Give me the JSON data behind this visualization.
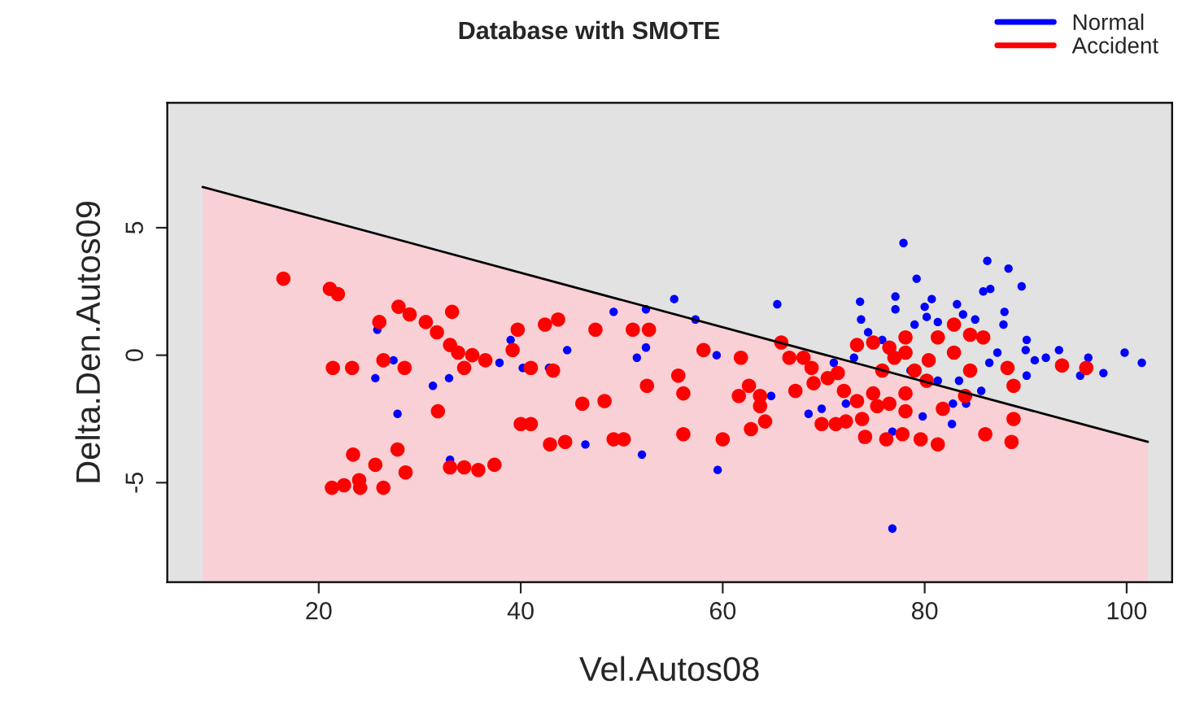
{
  "chart_data": {
    "type": "scatter",
    "title": "Database with SMOTE",
    "xlabel": "Vel.Autos08",
    "ylabel": "Delta.Den.Autos09",
    "xlim": [
      5,
      104.5
    ],
    "ylim": [
      -8.9,
      9.9
    ],
    "xticks": [
      20,
      40,
      60,
      80,
      100
    ],
    "yticks": [
      -5,
      0,
      5
    ],
    "grid": false,
    "legend": "top right",
    "series": [
      {
        "name": "Normal",
        "color": "#0000ff",
        "type": "scatter",
        "marker": "circle",
        "x": [
          25.6,
          27.4,
          25.8,
          27.8,
          31.3,
          32.9,
          33.0,
          37.9,
          39.0,
          40.2,
          42.8,
          44.6,
          46.4,
          49.2,
          52.4,
          55.2,
          57.3,
          52.4,
          51.5,
          59.4,
          52.0,
          59.5,
          65.4,
          64.8,
          68.5,
          69.8,
          72.2,
          73.6,
          73.7,
          74.4,
          71.0,
          73.9,
          76.8,
          76.8,
          77.1,
          77.1,
          77.9,
          79.2,
          80.0,
          80.7,
          79.0,
          80.2,
          81.3,
          83.2,
          83.8,
          85.0,
          85.8,
          86.5,
          86.2,
          88.3,
          89.6,
          87.9,
          87.8,
          90.1,
          90.0,
          87.2,
          86.4,
          90.9,
          90.1,
          92.0,
          93.3,
          96.2,
          95.4,
          97.7,
          99.8,
          101.5,
          85.6,
          84.1,
          82.8,
          82.7,
          79.8,
          81.3,
          83.4,
          78.6,
          75.8,
          73.0
        ],
        "values": [
          -0.9,
          -0.2,
          1.0,
          -2.3,
          -1.2,
          -0.9,
          -4.1,
          -0.3,
          0.6,
          -0.5,
          -0.5,
          0.2,
          -3.5,
          1.7,
          1.8,
          2.2,
          1.4,
          0.3,
          -0.1,
          0.0,
          -3.9,
          -4.5,
          2.0,
          -1.6,
          -2.3,
          -2.1,
          -1.9,
          2.1,
          1.4,
          0.9,
          -0.3,
          -3.3,
          -3.0,
          -6.8,
          1.8,
          2.3,
          4.4,
          3.0,
          1.9,
          2.2,
          1.2,
          1.5,
          1.3,
          2.0,
          1.6,
          1.4,
          2.5,
          2.6,
          3.7,
          3.4,
          2.7,
          1.7,
          1.2,
          0.6,
          0.2,
          0.1,
          -0.3,
          -0.2,
          -0.8,
          -0.1,
          0.2,
          -0.1,
          -0.8,
          -0.7,
          0.1,
          -0.3,
          -1.4,
          -1.9,
          -1.9,
          -2.7,
          -2.4,
          -1.0,
          -1.0,
          -0.6,
          0.6,
          -0.1
        ]
      },
      {
        "name": "Accident",
        "color": "#ff0000",
        "type": "scatter",
        "marker": "circle",
        "x": [
          16.5,
          21.1,
          21.9,
          21.4,
          23.3,
          26.0,
          26.4,
          28.5,
          27.9,
          29.0,
          30.6,
          31.7,
          33.2,
          33.0,
          33.8,
          35.2,
          36.5,
          34.4,
          31.8,
          39.7,
          39.2,
          41.0,
          42.4,
          43.7,
          43.2,
          40.0,
          41.0,
          42.9,
          44.4,
          46.1,
          23.4,
          21.3,
          22.5,
          24.0,
          24.1,
          26.4,
          25.6,
          27.8,
          28.6,
          33.0,
          34.4,
          35.8,
          37.4,
          47.4,
          48.3,
          51.1,
          52.7,
          52.5,
          55.6,
          56.1,
          49.2,
          50.2,
          56.1,
          60.0,
          58.1,
          61.8,
          62.6,
          61.6,
          63.7,
          63.7,
          62.8,
          64.2,
          65.8,
          66.6,
          68.0,
          68.8,
          67.2,
          69.0,
          70.4,
          71.4,
          72.0,
          69.8,
          71.2,
          72.2,
          73.3,
          73.8,
          74.1,
          76.2,
          77.8,
          79.6,
          81.3,
          74.9,
          75.3,
          76.5,
          78.1,
          78.1,
          73.3,
          74.9,
          76.5,
          77.0,
          78.1,
          75.8,
          79.0,
          80.4,
          81.3,
          82.9,
          84.5,
          85.8,
          82.9,
          84.5,
          88.2,
          88.8,
          84.0,
          81.8,
          88.8,
          86.0,
          88.6,
          93.6,
          96.0,
          78.1,
          80.2
        ],
        "values": [
          3.0,
          2.6,
          2.4,
          -0.5,
          -0.5,
          1.3,
          -0.2,
          -0.5,
          1.9,
          1.6,
          1.3,
          0.9,
          1.7,
          0.4,
          0.1,
          0.0,
          -0.2,
          -0.5,
          -2.2,
          1.0,
          0.2,
          -0.5,
          1.2,
          1.4,
          -0.6,
          -2.7,
          -2.7,
          -3.5,
          -3.4,
          -1.9,
          -3.9,
          -5.2,
          -5.1,
          -4.9,
          -5.2,
          -5.2,
          -4.3,
          -3.7,
          -4.6,
          -4.4,
          -4.4,
          -4.5,
          -4.3,
          1.0,
          -1.8,
          1.0,
          1.0,
          -1.2,
          -0.8,
          -1.5,
          -3.3,
          -3.3,
          -3.1,
          -3.3,
          0.2,
          -0.1,
          -1.2,
          -1.6,
          -1.6,
          -2.0,
          -2.9,
          -2.6,
          0.5,
          -0.1,
          -0.1,
          -0.5,
          -1.4,
          -1.1,
          -0.9,
          -0.7,
          -1.4,
          -2.7,
          -2.7,
          -2.6,
          -1.8,
          -2.5,
          -3.2,
          -3.3,
          -3.1,
          -3.3,
          -3.5,
          -1.5,
          -2.0,
          -1.9,
          -1.5,
          -2.2,
          0.4,
          0.5,
          0.3,
          -0.1,
          0.1,
          -0.6,
          -0.6,
          -0.2,
          0.7,
          1.2,
          0.8,
          0.7,
          0.1,
          -0.6,
          -0.5,
          -1.2,
          -1.6,
          -2.1,
          -2.5,
          -3.1,
          -3.4,
          -0.4,
          -0.5,
          0.7,
          -1.0
        ]
      },
      {
        "type": "line",
        "color": "#000000",
        "x": [
          8.5,
          102.1
        ],
        "values": [
          6.6,
          -3.4
        ],
        "lower": [
          -8.9,
          -8.9
        ],
        "upper": [
          6.6,
          -3.4
        ]
      }
    ]
  }
}
